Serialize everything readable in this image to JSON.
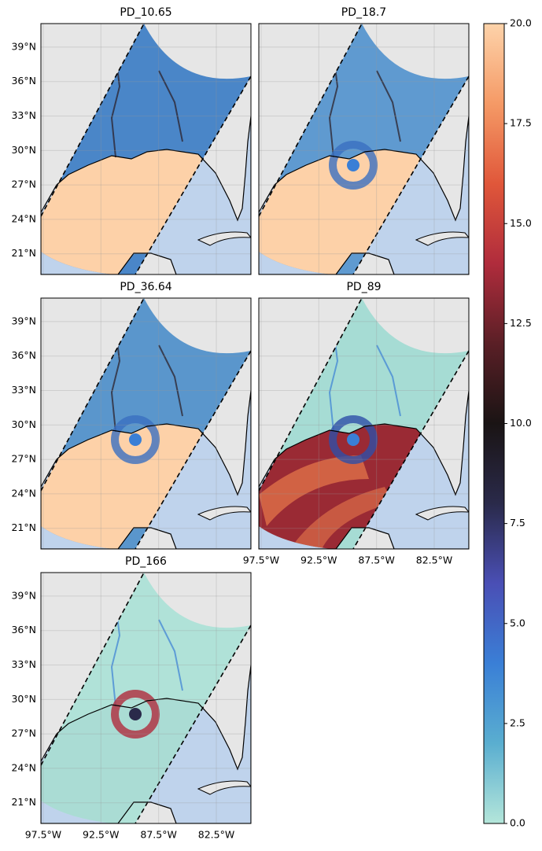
{
  "chart_data": {
    "type": "map",
    "panels": [
      {
        "title": "PD_10.65"
      },
      {
        "title": "PD_18.7"
      },
      {
        "title": "PD_36.64"
      },
      {
        "title": "PD_89"
      },
      {
        "title": "PD_166"
      }
    ],
    "xlim": [
      -97.7,
      -79.5
    ],
    "ylim": [
      19.2,
      41.05
    ],
    "xticks": [
      {
        "value": -97.5,
        "label": "97.5°W"
      },
      {
        "value": -92.5,
        "label": "92.5°W"
      },
      {
        "value": -87.5,
        "label": "87.5°W"
      },
      {
        "value": -82.5,
        "label": "82.5°W"
      }
    ],
    "yticks": [
      {
        "value": 21,
        "label": "21°N"
      },
      {
        "value": 24,
        "label": "24°N"
      },
      {
        "value": 27,
        "label": "27°N"
      },
      {
        "value": 30,
        "label": "30°N"
      },
      {
        "value": 33,
        "label": "33°N"
      },
      {
        "value": 36,
        "label": "36°N"
      },
      {
        "value": 39,
        "label": "39°N"
      }
    ],
    "grid": true,
    "colorbar": {
      "lim": [
        0,
        20
      ],
      "ticks": [
        {
          "value": 0,
          "label": "0.0"
        },
        {
          "value": 2.5,
          "label": "2.5"
        },
        {
          "value": 5,
          "label": "5.0"
        },
        {
          "value": 7.5,
          "label": "7.5"
        },
        {
          "value": 10,
          "label": "10.0"
        },
        {
          "value": 12.5,
          "label": "12.5"
        },
        {
          "value": 15,
          "label": "15.0"
        },
        {
          "value": 17.5,
          "label": "17.5"
        },
        {
          "value": 20,
          "label": "20.0"
        }
      ],
      "colors": [
        "#b4e6da",
        "#5aaed0",
        "#3a7fd6",
        "#4a4fb5",
        "#2a2a4a",
        "#1a1414",
        "#5a1f26",
        "#b02c3c",
        "#e0573a",
        "#f59a66",
        "#fdd3aa"
      ]
    }
  }
}
